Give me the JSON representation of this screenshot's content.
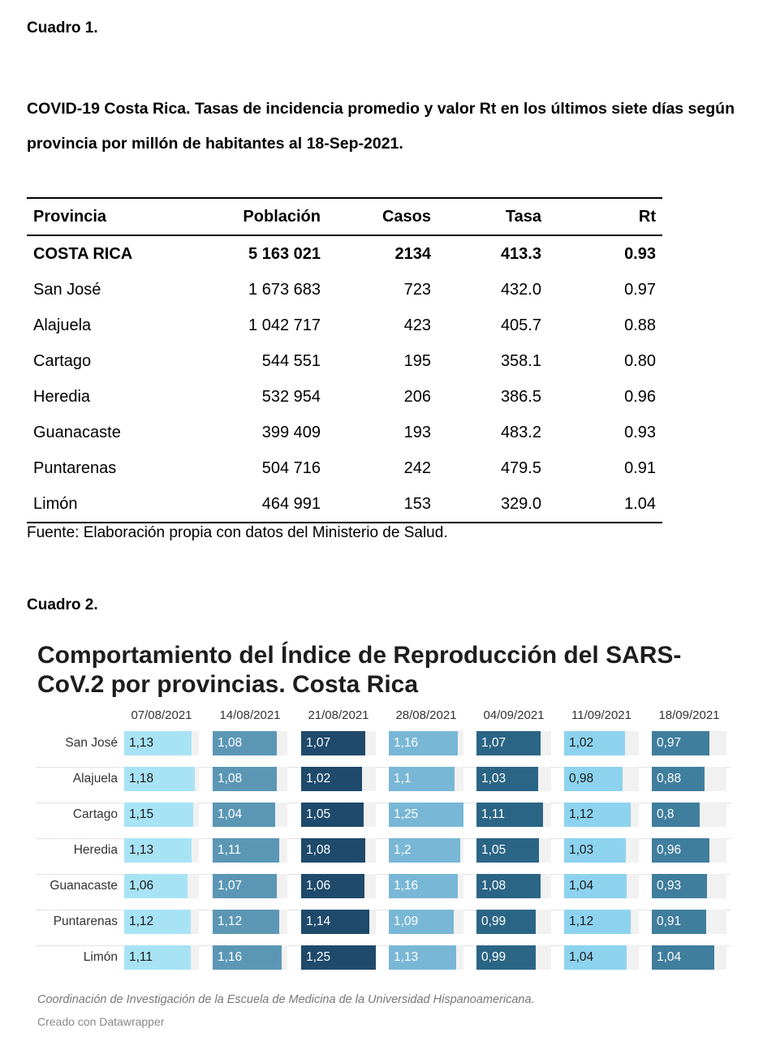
{
  "cuadro1": {
    "label": "Cuadro 1.",
    "title": "COVID-19 Costa Rica. Tasas de incidencia promedio y valor Rt en los últimos siete días según provincia por millón de habitantes al 18-Sep-2021.",
    "columns": [
      "Provincia",
      "Población",
      "Casos",
      "Tasa",
      "Rt"
    ],
    "rows": [
      {
        "provincia": "COSTA RICA",
        "poblacion": "5 163 021",
        "casos": "2134",
        "tasa": "413.3",
        "rt": "0.93"
      },
      {
        "provincia": "San José",
        "poblacion": "1 673 683",
        "casos": "723",
        "tasa": "432.0",
        "rt": "0.97"
      },
      {
        "provincia": "Alajuela",
        "poblacion": "1 042 717",
        "casos": "423",
        "tasa": "405.7",
        "rt": "0.88"
      },
      {
        "provincia": "Cartago",
        "poblacion": "544 551",
        "casos": "195",
        "tasa": "358.1",
        "rt": "0.80"
      },
      {
        "provincia": "Heredia",
        "poblacion": "532 954",
        "casos": "206",
        "tasa": "386.5",
        "rt": "0.96"
      },
      {
        "provincia": "Guanacaste",
        "poblacion": "399 409",
        "casos": "193",
        "tasa": "483.2",
        "rt": "0.93"
      },
      {
        "provincia": "Puntarenas",
        "poblacion": "504 716",
        "casos": "242",
        "tasa": "479.5",
        "rt": "0.91"
      },
      {
        "provincia": "Limón",
        "poblacion": "464 991",
        "casos": "153",
        "tasa": "329.0",
        "rt": "1.04"
      }
    ],
    "source": "Fuente: Elaboración propia con datos del Ministerio de Salud."
  },
  "cuadro2": {
    "label": "Cuadro 2.",
    "title": "Comportamiento del Índice de Reproducción del SARS-CoV.2 por provincias. Costa Rica",
    "note": "Coordinación de Investigación de la Escuela de Medicina de la Universidad Hispanoamericana.",
    "credit": "Creado con Datawrapper"
  },
  "chart_data": {
    "type": "table",
    "title": "Comportamiento del Índice de Reproducción del SARS-CoV.2 por provincias. Costa Rica",
    "columns": [
      "07/08/2021",
      "14/08/2021",
      "21/08/2021",
      "28/08/2021",
      "04/09/2021",
      "11/09/2021",
      "18/09/2021"
    ],
    "column_colors": [
      "#a8e3f5",
      "#5b97b5",
      "#1f4a6b",
      "#79b7d6",
      "#2b6585",
      "#8dd3ef",
      "#407e9e"
    ],
    "column_text_colors": [
      "#1a1a1a",
      "#ffffff",
      "#ffffff",
      "#ffffff",
      "#ffffff",
      "#1a1a1a",
      "#ffffff"
    ],
    "bar_max": 1.25,
    "rows": [
      {
        "provincia": "San José",
        "values": [
          1.13,
          1.08,
          1.07,
          1.16,
          1.07,
          1.02,
          0.97
        ],
        "labels": [
          "1,13",
          "1,08",
          "1,07",
          "1,16",
          "1,07",
          "1,02",
          "0,97"
        ]
      },
      {
        "provincia": "Alajuela",
        "values": [
          1.18,
          1.08,
          1.02,
          1.1,
          1.03,
          0.98,
          0.88
        ],
        "labels": [
          "1,18",
          "1,08",
          "1,02",
          "1,1",
          "1,03",
          "0,98",
          "0,88"
        ]
      },
      {
        "provincia": "Cartago",
        "values": [
          1.15,
          1.04,
          1.05,
          1.25,
          1.11,
          1.12,
          0.8
        ],
        "labels": [
          "1,15",
          "1,04",
          "1,05",
          "1,25",
          "1,11",
          "1,12",
          "0,8"
        ]
      },
      {
        "provincia": "Heredia",
        "values": [
          1.13,
          1.11,
          1.08,
          1.2,
          1.05,
          1.03,
          0.96
        ],
        "labels": [
          "1,13",
          "1,11",
          "1,08",
          "1,2",
          "1,05",
          "1,03",
          "0,96"
        ]
      },
      {
        "provincia": "Guanacaste",
        "values": [
          1.06,
          1.07,
          1.06,
          1.16,
          1.08,
          1.04,
          0.93
        ],
        "labels": [
          "1,06",
          "1,07",
          "1,06",
          "1,16",
          "1,08",
          "1,04",
          "0,93"
        ]
      },
      {
        "provincia": "Puntarenas",
        "values": [
          1.12,
          1.12,
          1.14,
          1.09,
          0.99,
          1.12,
          0.91
        ],
        "labels": [
          "1,12",
          "1,12",
          "1,14",
          "1,09",
          "0,99",
          "1,12",
          "0,91"
        ]
      },
      {
        "provincia": "Limón",
        "values": [
          1.11,
          1.16,
          1.25,
          1.13,
          0.99,
          1.04,
          1.04
        ],
        "labels": [
          "1,11",
          "1,16",
          "1,25",
          "1,13",
          "0,99",
          "1,04",
          "1,04"
        ]
      }
    ]
  }
}
